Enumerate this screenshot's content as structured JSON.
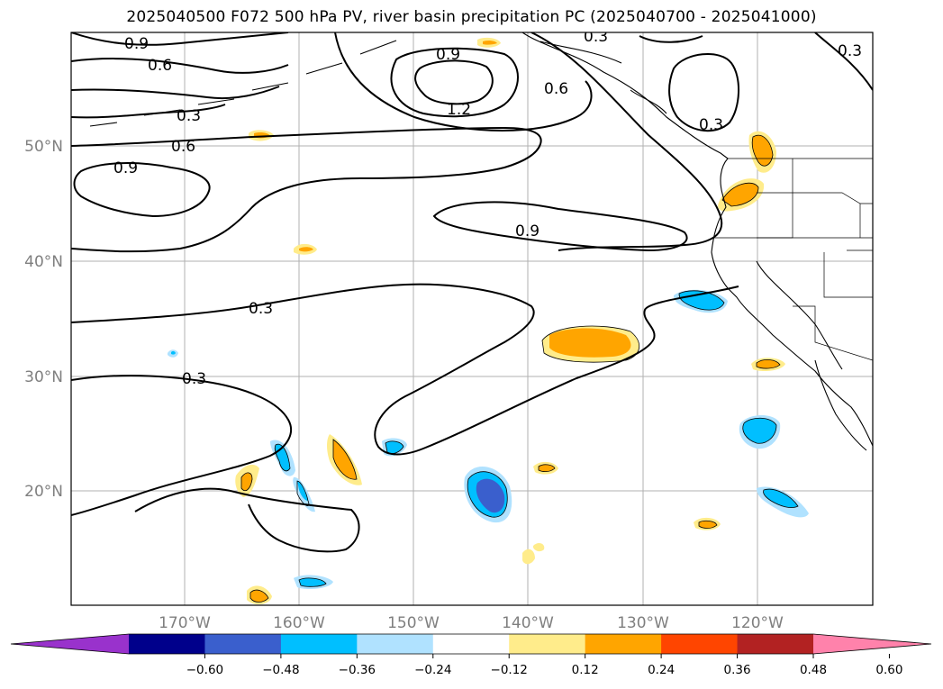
{
  "title": "2025040500 F072 500 hPa PV, river basin precipitation PC (2025040700 - 2025041000)",
  "map": {
    "lon_ticks": [
      "170°W",
      "160°W",
      "150°W",
      "140°W",
      "130°W",
      "120°W"
    ],
    "lat_ticks": [
      "50°N",
      "40°N",
      "30°N",
      "20°N"
    ],
    "gridlines": true
  },
  "pv_contour_labels": [
    "0.9",
    "0.6",
    "0.3",
    "0.6",
    "0.9",
    "0.9",
    "1.2",
    "0.6",
    "0.3",
    "0.3",
    "0.9",
    "0.3",
    "0.3",
    "0.3"
  ],
  "colorbar": {
    "extend": "both",
    "colors": [
      "#9932cc",
      "#00008b",
      "#3a5fcd",
      "#00bfff",
      "#b0e2ff",
      "#ffffff",
      "#ffec8b",
      "#ffa500",
      "#ff4500",
      "#b22222",
      "#ff82ab"
    ],
    "tick_labels": [
      "−0.60",
      "−0.48",
      "−0.36",
      "−0.24",
      "−0.12",
      "0.12",
      "0.24",
      "0.36",
      "0.48",
      "0.60"
    ]
  }
}
